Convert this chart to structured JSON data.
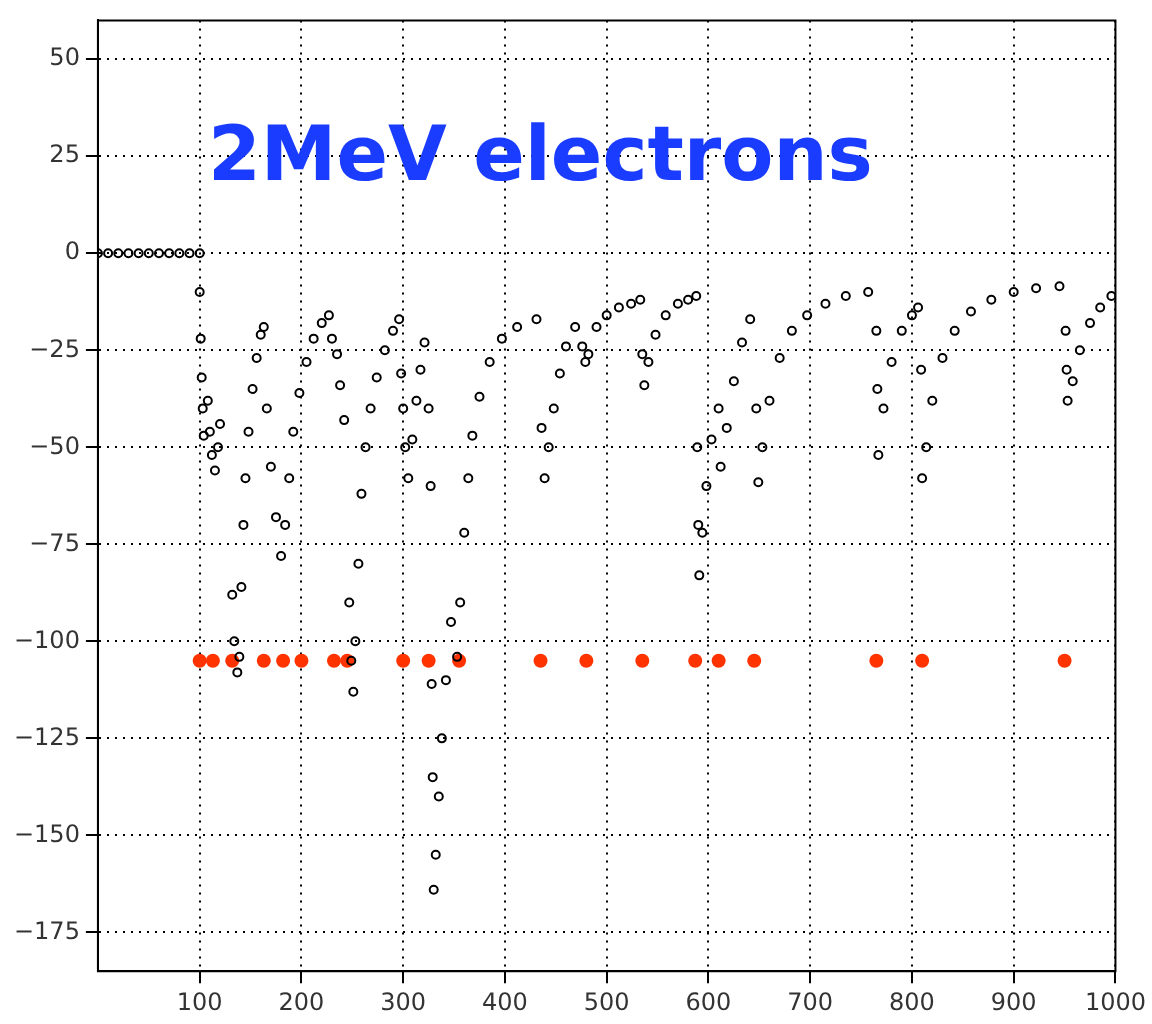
{
  "chart_data": {
    "type": "scatter",
    "title": "2MeV electrons",
    "xlim": [
      0,
      1000
    ],
    "ylim": [
      -185,
      60
    ],
    "xticks": [
      100,
      200,
      300,
      400,
      500,
      600,
      700,
      800,
      900,
      1000
    ],
    "yticks": [
      -175,
      -150,
      -125,
      -100,
      -75,
      -50,
      -25,
      0,
      25,
      50
    ],
    "grid": true,
    "marker": "circle",
    "series": [
      {
        "color": "#000000",
        "x": [
          0,
          10,
          20,
          30,
          40,
          50,
          60,
          70,
          80,
          90,
          100,
          100,
          101,
          102,
          103,
          104,
          108,
          110,
          112,
          115,
          118,
          120,
          132,
          134,
          137,
          139,
          141,
          143,
          145,
          148,
          152,
          156,
          160,
          163,
          166,
          170,
          175,
          180,
          184,
          188,
          192,
          198,
          205,
          212,
          220,
          227,
          230,
          235,
          238,
          242,
          247,
          249,
          251,
          253,
          256,
          259,
          263,
          268,
          274,
          282,
          290,
          296,
          298,
          300,
          302,
          305,
          309,
          313,
          317,
          321,
          325,
          327,
          328,
          329,
          330,
          332,
          335,
          338,
          342,
          347,
          353,
          356,
          360,
          364,
          368,
          375,
          385,
          397,
          412,
          431,
          436,
          439,
          443,
          448,
          454,
          460,
          469,
          476,
          479,
          482,
          490,
          500,
          512,
          524,
          533,
          535,
          537,
          541,
          548,
          558,
          570,
          580,
          588,
          589,
          590,
          591,
          594,
          598,
          603,
          610,
          612,
          618,
          625,
          633,
          641,
          647,
          649,
          653,
          660,
          670,
          682,
          697,
          715,
          735,
          757,
          765,
          766,
          767,
          772,
          780,
          790,
          800,
          806,
          809,
          810,
          814,
          820,
          830,
          842,
          858,
          878,
          900,
          922,
          945,
          951,
          952,
          953,
          958,
          965,
          975,
          985,
          996
        ],
        "values": [
          0,
          0,
          0,
          0,
          0,
          0,
          0,
          0,
          0,
          0,
          0,
          -10,
          -22,
          -32,
          -40,
          -47,
          -38,
          -46,
          -52,
          -56,
          -50,
          -44,
          -88,
          -100,
          -108,
          -104,
          -86,
          -70,
          -58,
          -46,
          -35,
          -27,
          -21,
          -19,
          -40,
          -55,
          -68,
          -78,
          -70,
          -58,
          -46,
          -36,
          -28,
          -22,
          -18,
          -16,
          -22,
          -26,
          -34,
          -43,
          -90,
          -105,
          -113,
          -100,
          -80,
          -62,
          -50,
          -40,
          -32,
          -25,
          -20,
          -17,
          -31,
          -40,
          -50,
          -58,
          -48,
          -38,
          -30,
          -23,
          -40,
          -60,
          -111,
          -135,
          -164,
          -155,
          -140,
          -125,
          -110,
          -95,
          -104,
          -90,
          -72,
          -58,
          -47,
          -37,
          -28,
          -22,
          -19,
          -17,
          -45,
          -58,
          -50,
          -40,
          -31,
          -24,
          -19,
          -24,
          -28,
          -26,
          -19,
          -16,
          -14,
          -13,
          -12,
          -26,
          -34,
          -28,
          -21,
          -16,
          -13,
          -12,
          -11,
          -50,
          -70,
          -83,
          -72,
          -60,
          -48,
          -40,
          -55,
          -45,
          -33,
          -23,
          -17,
          -40,
          -59,
          -50,
          -38,
          -27,
          -20,
          -16,
          -13,
          -11,
          -10,
          -20,
          -35,
          -52,
          -40,
          -28,
          -20,
          -16,
          -14,
          -30,
          -58,
          -50,
          -38,
          -27,
          -20,
          -15,
          -12,
          -10,
          -9,
          -8.5,
          -20,
          -30,
          -38,
          -33,
          -25,
          -18,
          -14,
          -11
        ]
      },
      {
        "color": "#ff3300",
        "x": [
          100,
          113,
          132,
          163,
          182,
          200,
          232,
          245,
          300,
          325,
          355,
          435,
          480,
          535,
          587,
          610,
          645,
          765,
          810,
          950
        ],
        "values": [
          -105,
          -105,
          -105,
          -105,
          -105,
          -105,
          -105,
          -105,
          -105,
          -105,
          -105,
          -105,
          -105,
          -105,
          -105,
          -105,
          -105,
          -105,
          -105,
          -105
        ]
      }
    ]
  }
}
